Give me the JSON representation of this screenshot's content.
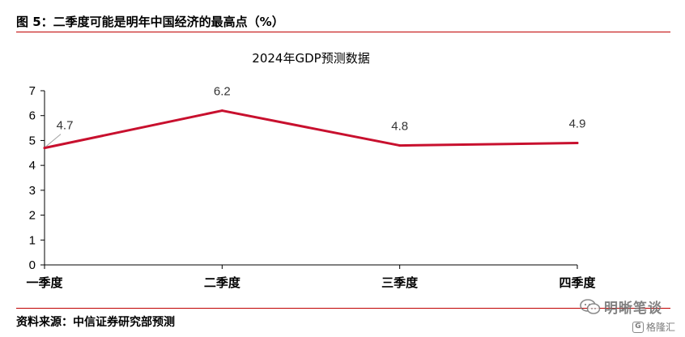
{
  "figure": {
    "title": "图 5：二季度可能是明年中国经济的最高点（%）",
    "source": "资料来源：中信证券研究部预测"
  },
  "watermark": {
    "text": "明晰笔谈",
    "icon": "wechat-icon",
    "badge_text": "格隆汇",
    "badge_icon": "gelonghui-logo-icon"
  },
  "colors": {
    "accent": "#c00000",
    "line": "#c8102e",
    "axis": "#000000"
  },
  "chart_data": {
    "type": "line",
    "title": "2024年GDP预测数据",
    "categories": [
      "一季度",
      "二季度",
      "三季度",
      "四季度"
    ],
    "series": [
      {
        "values": [
          4.7,
          6.2,
          4.8,
          4.9
        ],
        "labels": [
          "4.7",
          "6.2",
          "4.8",
          "4.9"
        ]
      }
    ],
    "ylim": [
      0,
      7
    ],
    "yticks": [
      0,
      1,
      2,
      3,
      4,
      5,
      6,
      7
    ],
    "xlabel": "",
    "ylabel": "",
    "grid": false,
    "legend": "none"
  }
}
